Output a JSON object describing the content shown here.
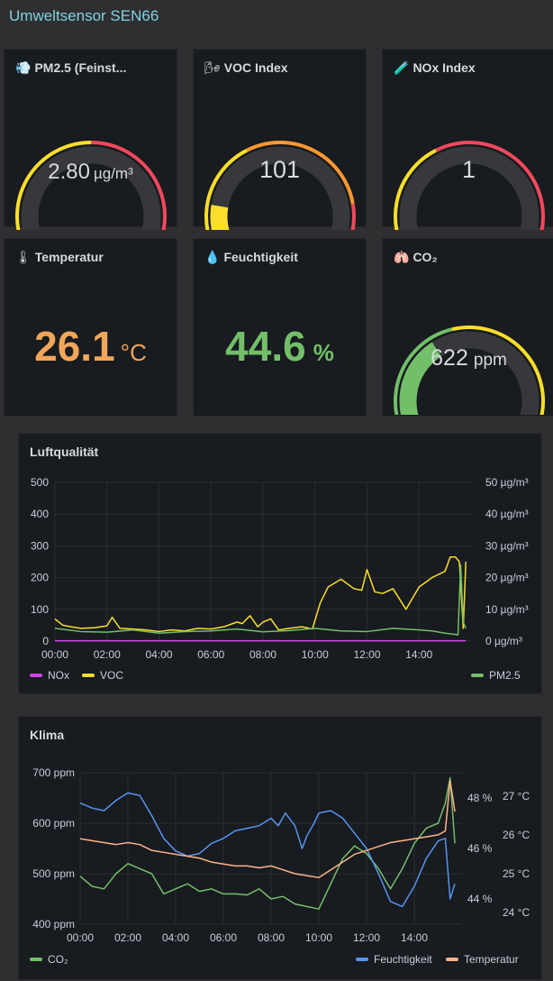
{
  "dashboard_title": "Umweltsensor SEN66",
  "colors": {
    "green": "#73bf69",
    "yellow": "#fade2a",
    "orange": "#ff9830",
    "red": "#f2495c",
    "magenta": "#d442ea",
    "blue": "#5794f2",
    "salmon": "#ffb38a",
    "temp_orange": "#f2a65a"
  },
  "pm25": {
    "title": "PM2.5 (Feinst...",
    "icon": "dust-icon",
    "value": "2.80",
    "unit": "µg/m³",
    "fill": 0.056
  },
  "voc": {
    "title": "VOC Index",
    "icon": "wind-icon",
    "value": "101",
    "fill": 0.2
  },
  "nox": {
    "title": "NOx Index",
    "icon": "test-tube-icon",
    "value": "1",
    "fill": 0.002
  },
  "temp": {
    "title": "Temperatur",
    "icon": "thermometer-icon",
    "value": "26.1",
    "unit": "°C"
  },
  "hum": {
    "title": "Feuchtigkeit",
    "icon": "droplet-icon",
    "value": "44.6",
    "unit": "%"
  },
  "co2": {
    "title": "CO₂",
    "icon": "lungs-icon",
    "value": "622",
    "unit": "ppm",
    "fill": 0.38
  },
  "chart_data": [
    {
      "type": "line",
      "title": "Luftqualität",
      "x_ticks": [
        "00:00",
        "02:00",
        "04:00",
        "06:00",
        "08:00",
        "10:00",
        "12:00",
        "14:00"
      ],
      "y_left_ticks": [
        "500",
        "400",
        "300",
        "200",
        "100",
        "0"
      ],
      "y_right_ticks": [
        "50 µg/m³",
        "40 µg/m³",
        "30 µg/m³",
        "20 µg/m³",
        "10 µg/m³",
        "0 µg/m³"
      ],
      "ylim_left": [
        0,
        500
      ],
      "ylim_right": [
        0,
        50
      ],
      "xlim_hours": [
        0,
        16
      ],
      "series": [
        {
          "name": "NOx",
          "axis": "left",
          "color": "#d442ea",
          "x": [
            0,
            15.8
          ],
          "y": [
            1,
            1
          ]
        },
        {
          "name": "VOC",
          "axis": "left",
          "color": "#fade2a",
          "x": [
            0,
            0.3,
            0.6,
            1,
            1.5,
            2,
            2.2,
            2.5,
            3,
            3.5,
            4,
            4.5,
            5,
            5.5,
            6,
            6.5,
            7,
            7.2,
            7.5,
            7.8,
            8,
            8.3,
            8.6,
            9,
            9.5,
            9.9,
            10.2,
            10.5,
            11,
            11.5,
            11.8,
            12,
            12.3,
            12.6,
            13,
            13.5,
            14,
            14.5,
            15,
            15.2,
            15.4,
            15.55,
            15.7,
            15.8
          ],
          "y": [
            70,
            50,
            45,
            40,
            42,
            48,
            75,
            40,
            38,
            35,
            30,
            35,
            32,
            40,
            38,
            45,
            60,
            55,
            80,
            45,
            60,
            70,
            35,
            40,
            45,
            38,
            120,
            170,
            195,
            165,
            160,
            225,
            155,
            150,
            165,
            100,
            170,
            200,
            220,
            265,
            265,
            250,
            40,
            250
          ]
        },
        {
          "name": "PM2.5",
          "axis": "right",
          "color": "#73bf69",
          "x": [
            0,
            1,
            2,
            3,
            4,
            5,
            6,
            7,
            8,
            9,
            10,
            11,
            12,
            13,
            14,
            14.5,
            15,
            15.3,
            15.5,
            15.6,
            15.7,
            15.8
          ],
          "y": [
            4,
            3,
            2.8,
            3.5,
            2.5,
            3,
            3.2,
            3.8,
            2.9,
            3.3,
            4,
            3.2,
            3,
            4,
            3.5,
            3.2,
            2.5,
            2.2,
            2,
            24,
            6,
            4
          ]
        }
      ]
    },
    {
      "type": "line",
      "title": "Klima",
      "x_ticks": [
        "00:00",
        "02:00",
        "04:00",
        "06:00",
        "08:00",
        "10:00",
        "12:00",
        "14:00"
      ],
      "y_left_ticks": [
        "700 ppm",
        "600 ppm",
        "500 ppm",
        "400 ppm"
      ],
      "y_right_ticks_hum": [
        "48 %",
        "46 %",
        "44 %"
      ],
      "y_right_ticks_temp": [
        "27 °C",
        "26 °C",
        "25 °C",
        "24 °C"
      ],
      "ylim_co2": [
        400,
        700
      ],
      "ylim_humidity": [
        43,
        49
      ],
      "ylim_temperature": [
        23.7,
        27.6
      ],
      "xlim_hours": [
        0,
        16
      ],
      "series": [
        {
          "name": "CO₂",
          "axis": "co2",
          "color": "#73bf69",
          "x": [
            0,
            0.5,
            1,
            1.5,
            2,
            2.5,
            3,
            3.5,
            4,
            4.5,
            5,
            5.5,
            6,
            6.5,
            7,
            7.5,
            8,
            8.5,
            9,
            9.5,
            10,
            10.5,
            11,
            11.5,
            12,
            12.5,
            13,
            13.5,
            14,
            14.5,
            15,
            15.3,
            15.5,
            15.7
          ],
          "y": [
            495,
            475,
            470,
            500,
            520,
            510,
            500,
            460,
            470,
            480,
            465,
            470,
            460,
            460,
            458,
            470,
            450,
            455,
            440,
            435,
            430,
            480,
            530,
            555,
            540,
            510,
            470,
            510,
            560,
            590,
            600,
            640,
            690,
            560
          ]
        },
        {
          "name": "Feuchtigkeit",
          "axis": "humidity",
          "color": "#5794f2",
          "x": [
            0,
            0.5,
            1,
            1.5,
            2,
            2.5,
            3,
            3.5,
            4,
            4.5,
            5,
            5.5,
            6,
            6.5,
            7,
            7.5,
            8,
            8.3,
            8.6,
            9,
            9.3,
            9.5,
            9.8,
            10,
            10.5,
            11,
            11.5,
            12,
            12.5,
            13,
            13.5,
            14,
            14.5,
            15,
            15.3,
            15.5,
            15.7
          ],
          "y": [
            47.8,
            47.6,
            47.5,
            47.9,
            48.2,
            48.1,
            47.3,
            46.4,
            45.9,
            45.7,
            45.8,
            46.2,
            46.4,
            46.7,
            46.8,
            46.9,
            47.2,
            46.9,
            47.4,
            46.9,
            46.0,
            46.5,
            47.0,
            47.4,
            47.5,
            47.2,
            46.6,
            46.0,
            45.0,
            43.9,
            43.7,
            44.5,
            45.6,
            46.3,
            46.4,
            44.0,
            44.6
          ]
        },
        {
          "name": "Temperatur",
          "axis": "temperature",
          "color": "#ffb38a",
          "x": [
            0,
            0.5,
            1,
            1.5,
            2,
            2.5,
            3,
            3.5,
            4,
            4.5,
            5,
            5.5,
            6,
            6.5,
            7,
            7.5,
            8,
            8.5,
            9,
            9.5,
            10,
            10.5,
            11,
            11.5,
            12,
            12.5,
            13,
            13.5,
            14,
            14.5,
            15,
            15.3,
            15.5,
            15.7
          ],
          "y": [
            25.9,
            25.85,
            25.8,
            25.75,
            25.8,
            25.75,
            25.6,
            25.55,
            25.5,
            25.45,
            25.4,
            25.3,
            25.25,
            25.2,
            25.2,
            25.15,
            25.2,
            25.1,
            25.0,
            24.95,
            24.9,
            25.1,
            25.3,
            25.5,
            25.6,
            25.7,
            25.8,
            25.85,
            25.9,
            25.95,
            26.0,
            26.1,
            27.4,
            26.6
          ]
        }
      ],
      "legend_left": [
        "CO₂"
      ],
      "legend_right": [
        "Feuchtigkeit",
        "Temperatur"
      ]
    }
  ]
}
